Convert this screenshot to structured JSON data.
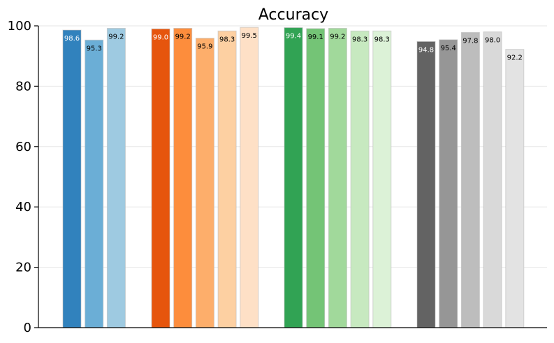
{
  "chart_data": {
    "type": "bar",
    "title": "Accuracy",
    "xlabel": "",
    "ylabel": "",
    "ylim": [
      0,
      100
    ],
    "yticks": [
      0,
      20,
      40,
      60,
      80,
      100
    ],
    "grid": "horizontal",
    "groups": [
      {
        "bars": [
          {
            "value": 98.6,
            "label": "98.6",
            "color": "#3182bd",
            "label_color": "#ffffff"
          },
          {
            "value": 95.3,
            "label": "95.3",
            "color": "#6baed6",
            "label_color": "#000000"
          },
          {
            "value": 99.2,
            "label": "99.2",
            "color": "#9ecae1",
            "label_color": "#000000"
          }
        ]
      },
      {
        "bars": [
          {
            "value": 99.0,
            "label": "99.0",
            "color": "#e6550d",
            "label_color": "#ffffff"
          },
          {
            "value": 99.2,
            "label": "99.2",
            "color": "#fd8d3c",
            "label_color": "#000000"
          },
          {
            "value": 95.9,
            "label": "95.9",
            "color": "#fdae6b",
            "label_color": "#000000"
          },
          {
            "value": 98.3,
            "label": "98.3",
            "color": "#fdd0a2",
            "label_color": "#000000"
          },
          {
            "value": 99.5,
            "label": "99.5",
            "color": "#fee0c6",
            "label_color": "#000000"
          }
        ]
      },
      {
        "bars": [
          {
            "value": 99.4,
            "label": "99.4",
            "color": "#31a354",
            "label_color": "#ffffff"
          },
          {
            "value": 99.1,
            "label": "99.1",
            "color": "#74c476",
            "label_color": "#000000"
          },
          {
            "value": 99.2,
            "label": "99.2",
            "color": "#a1d99b",
            "label_color": "#000000"
          },
          {
            "value": 98.3,
            "label": "98.3",
            "color": "#c7e9c0",
            "label_color": "#000000"
          },
          {
            "value": 98.3,
            "label": "98.3",
            "color": "#dcf2d7",
            "label_color": "#000000"
          }
        ]
      },
      {
        "bars": [
          {
            "value": 94.8,
            "label": "94.8",
            "color": "#636363",
            "label_color": "#ffffff"
          },
          {
            "value": 95.4,
            "label": "95.4",
            "color": "#969696",
            "label_color": "#000000"
          },
          {
            "value": 97.8,
            "label": "97.8",
            "color": "#bdbdbd",
            "label_color": "#000000"
          },
          {
            "value": 98.0,
            "label": "98.0",
            "color": "#d9d9d9",
            "label_color": "#000000"
          },
          {
            "value": 92.2,
            "label": "92.2",
            "color": "#e3e3e3",
            "label_color": "#000000"
          }
        ]
      }
    ]
  }
}
